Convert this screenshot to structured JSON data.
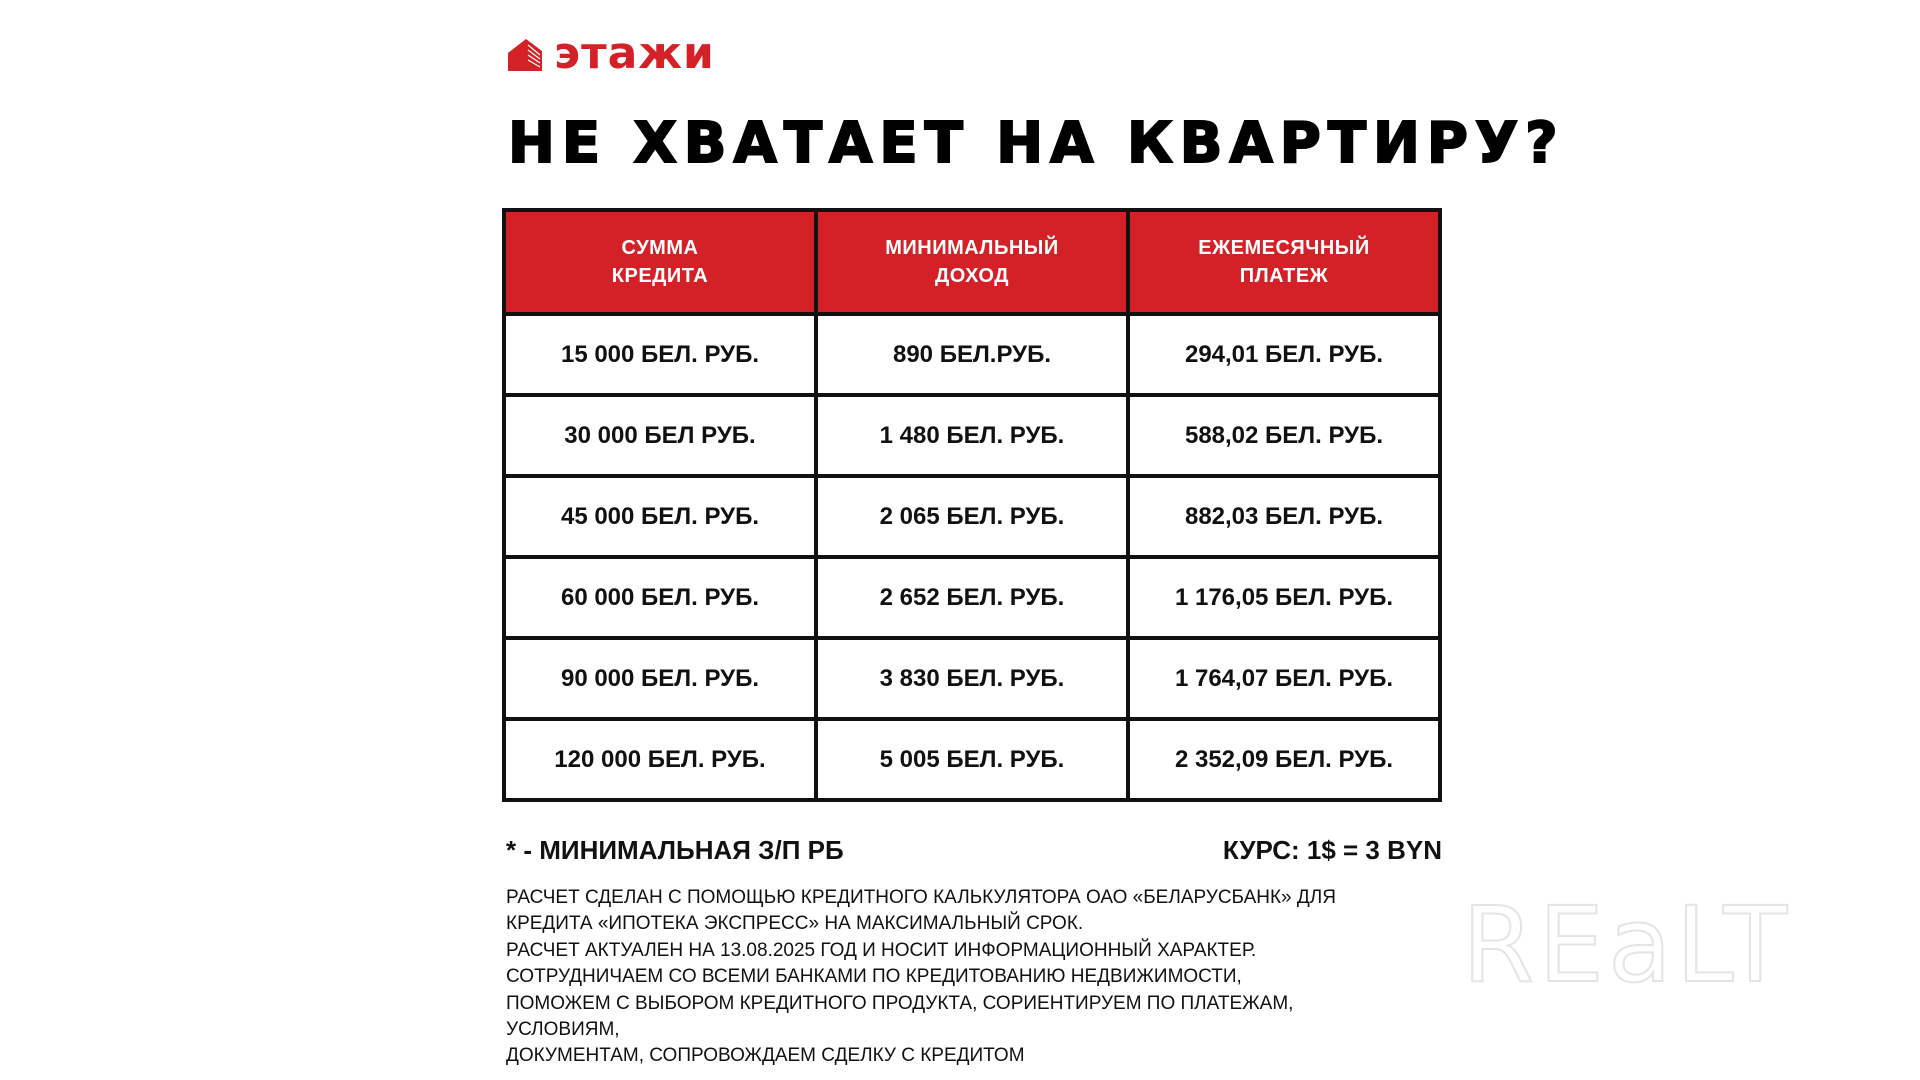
{
  "brand": {
    "name": "этажи",
    "color": "#d42027",
    "icon": "building-icon"
  },
  "title": "НЕ ХВАТАЕТ НА КВАРТИРУ?",
  "table": {
    "headers": [
      [
        "СУММА",
        "КРЕДИТА"
      ],
      [
        "МИНИМАЛЬНЫЙ",
        "ДОХОД"
      ],
      [
        "ЕЖЕМЕСЯЧНЫЙ",
        "ПЛАТЕЖ"
      ]
    ],
    "rows": [
      [
        "15 000 БЕЛ. РУБ.",
        "890 БЕЛ.РУБ.",
        "294,01 БЕЛ. РУБ."
      ],
      [
        "30 000 БЕЛ РУБ.",
        "1 480 БЕЛ. РУБ.",
        "588,02 БЕЛ. РУБ."
      ],
      [
        "45 000 БЕЛ. РУБ.",
        "2 065 БЕЛ. РУБ.",
        "882,03 БЕЛ. РУБ."
      ],
      [
        "60 000 БЕЛ. РУБ.",
        "2 652 БЕЛ. РУБ.",
        "1 176,05 БЕЛ. РУБ."
      ],
      [
        "90 000 БЕЛ. РУБ.",
        "3 830 БЕЛ. РУБ.",
        "1 764,07 БЕЛ. РУБ."
      ],
      [
        "120 000 БЕЛ. РУБ.",
        "5 005 БЕЛ. РУБ.",
        "2 352,09 БЕЛ. РУБ."
      ]
    ]
  },
  "footnote": "* - МИНИМАЛЬНАЯ З/П РБ",
  "rate": "КУРС: 1$ = 3 BYN",
  "paragraph": [
    "РАСЧЕТ СДЕЛАН С ПОМОЩЬЮ КРЕДИТНОГО КАЛЬКУЛЯТОРА ОАО «БЕЛАРУСБАНК» ДЛЯ",
    "КРЕДИТА «ИПОТЕКА ЭКСПРЕСС» НА МАКСИМАЛЬНЫЙ СРОК.",
    "РАСЧЕТ АКТУАЛЕН НА 13.08.2025 ГОД И НОСИТ ИНФОРМАЦИОННЫЙ ХАРАКТЕР.",
    "СОТРУДНИЧАЕМ СО ВСЕМИ БАНКАМИ ПО КРЕДИТОВАНИЮ НЕДВИЖИМОСТИ,",
    "ПОМОЖЕМ С ВЫБОРОМ КРЕДИТНОГО ПРОДУКТА, СОРИЕНТИРУЕМ ПО ПЛАТЕЖАМ,",
    "УСЛОВИЯМ,",
    "ДОКУМЕНТАМ, СОПРОВОЖДАЕМ СДЕЛКУ С КРЕДИТОМ"
  ],
  "watermark": "REaLT"
}
